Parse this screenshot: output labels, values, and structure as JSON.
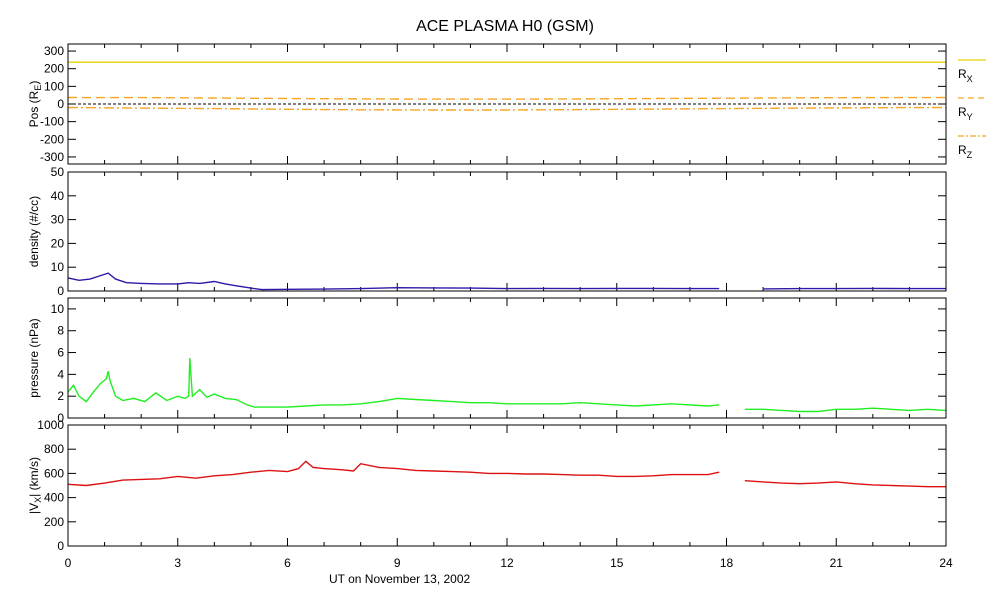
{
  "chart_data": {
    "title": "ACE PLASMA H0 (GSM)",
    "xlabel": "UT on November 13, 2002",
    "x_ticks": [
      "0",
      "3",
      "6",
      "9",
      "12",
      "15",
      "18",
      "21",
      "24"
    ],
    "xlim": [
      0,
      24
    ],
    "panels": [
      {
        "type": "line",
        "ylabel": "Pos (R",
        "ylabel_sub": "E",
        "ylabel_suffix": ")",
        "ylim": [
          -340,
          340
        ],
        "y_ticks": [
          "300",
          "200",
          "100",
          "0",
          "-100",
          "-200",
          "-300"
        ],
        "zero_line": true,
        "series": [
          {
            "name": "R",
            "name_sub": "X",
            "color": "#e6d200",
            "style": "solid",
            "x": [
              0,
              24
            ],
            "values": [
              237,
              237
            ]
          },
          {
            "name": "R",
            "name_sub": "Y",
            "color": "#f5a623",
            "style": "dashed",
            "x": [
              0,
              2,
              4,
              6,
              8,
              10,
              12,
              14,
              16,
              18,
              20,
              22,
              24
            ],
            "values": [
              37,
              36,
              34,
              31,
              29,
              28,
              28,
              29,
              31,
              33,
              35,
              36,
              37
            ]
          },
          {
            "name": "R",
            "name_sub": "Z",
            "color": "#f5a623",
            "style": "dashdot",
            "x": [
              0,
              2,
              4,
              6,
              8,
              10,
              12,
              14,
              16,
              18,
              20,
              22,
              24
            ],
            "values": [
              -20,
              -23,
              -26,
              -30,
              -33,
              -34,
              -34,
              -32,
              -29,
              -26,
              -23,
              -21,
              -20
            ]
          }
        ]
      },
      {
        "type": "line",
        "ylabel": "density (#/cc)",
        "ylim": [
          0,
          50
        ],
        "y_ticks": [
          "50",
          "40",
          "30",
          "20",
          "10",
          "0"
        ],
        "series": [
          {
            "name": "",
            "color": "#2c1aa8",
            "x": [
              0,
              0.3,
              0.6,
              0.9,
              1.1,
              1.3,
              1.6,
              2.0,
              2.5,
              3.0,
              3.3,
              3.6,
              4.0,
              4.3,
              4.6,
              5.0,
              5.3,
              6,
              7,
              8,
              9,
              10,
              11,
              12,
              13,
              14,
              15,
              16,
              17,
              17.8,
              18,
              19,
              20,
              21,
              22,
              23,
              24
            ],
            "values": [
              5.5,
              4.5,
              5,
              6.5,
              7.5,
              5,
              3.5,
              3.2,
              3,
              3,
              3.5,
              3.2,
              4,
              3,
              2.2,
              1.2,
              0.6,
              0.7,
              0.8,
              1,
              1.4,
              1.3,
              1.2,
              1,
              1.1,
              1,
              1.1,
              1.1,
              1,
              1,
              null,
              0.9,
              1,
              1,
              1.1,
              1,
              1
            ]
          }
        ]
      },
      {
        "type": "line",
        "ylabel": "pressure (nPa)",
        "ylim": [
          0,
          11
        ],
        "y_ticks": [
          "10",
          "8",
          "6",
          "4",
          "2",
          "0"
        ],
        "series": [
          {
            "name": "",
            "color": "#22ee22",
            "x": [
              0,
              0.15,
              0.3,
              0.5,
              0.7,
              0.9,
              1.05,
              1.1,
              1.15,
              1.3,
              1.5,
              1.8,
              2.1,
              2.4,
              2.7,
              3.0,
              3.2,
              3.3,
              3.33,
              3.4,
              3.6,
              3.8,
              4.0,
              4.3,
              4.6,
              4.9,
              5.1,
              5.5,
              6,
              6.5,
              7,
              7.5,
              8,
              8.5,
              9,
              9.5,
              10,
              10.5,
              11,
              11.5,
              12,
              12.5,
              13,
              13.5,
              14,
              14.5,
              15,
              15.5,
              16,
              16.5,
              17,
              17.5,
              17.8,
              18,
              18.5,
              19,
              19.5,
              20,
              20.5,
              21,
              21.5,
              22,
              22.5,
              23,
              23.5,
              24
            ],
            "values": [
              2.4,
              3.0,
              2.0,
              1.5,
              2.4,
              3.2,
              3.6,
              4.3,
              3.4,
              2.0,
              1.6,
              1.8,
              1.5,
              2.3,
              1.6,
              2.0,
              1.8,
              2.0,
              5.5,
              2.0,
              2.6,
              1.9,
              2.2,
              1.8,
              1.7,
              1.2,
              1.0,
              1.0,
              1.0,
              1.1,
              1.2,
              1.2,
              1.3,
              1.5,
              1.8,
              1.7,
              1.6,
              1.5,
              1.4,
              1.4,
              1.3,
              1.3,
              1.3,
              1.3,
              1.4,
              1.3,
              1.2,
              1.1,
              1.2,
              1.3,
              1.2,
              1.1,
              1.2,
              null,
              0.8,
              0.8,
              0.7,
              0.6,
              0.6,
              0.8,
              0.8,
              0.9,
              0.8,
              0.7,
              0.8,
              0.7
            ]
          }
        ]
      },
      {
        "type": "line",
        "ylabel": "|V",
        "ylabel_sub": "X",
        "ylabel_suffix": "| (km/s)",
        "ylim": [
          0,
          1000
        ],
        "y_ticks": [
          "1000",
          "800",
          "600",
          "400",
          "200",
          "0"
        ],
        "series": [
          {
            "name": "",
            "color": "#dd1111",
            "x": [
              0,
              0.5,
              1,
              1.5,
              2,
              2.5,
              3,
              3.5,
              4,
              4.5,
              5,
              5.5,
              6,
              6.3,
              6.5,
              6.7,
              7,
              7.5,
              7.8,
              8,
              8.5,
              9,
              9.5,
              10,
              10.5,
              11,
              11.5,
              12,
              12.5,
              13,
              13.5,
              14,
              14.5,
              15,
              15.5,
              16,
              16.5,
              17,
              17.5,
              17.8,
              18,
              18.5,
              19,
              19.5,
              20,
              20.5,
              21,
              21.5,
              22,
              22.5,
              23,
              23.5,
              24
            ],
            "values": [
              510,
              500,
              520,
              545,
              550,
              555,
              575,
              560,
              580,
              590,
              610,
              625,
              615,
              640,
              700,
              650,
              640,
              630,
              620,
              680,
              650,
              640,
              625,
              620,
              615,
              610,
              600,
              600,
              595,
              595,
              590,
              585,
              585,
              575,
              575,
              580,
              590,
              590,
              590,
              610,
              null,
              540,
              530,
              520,
              515,
              520,
              530,
              515,
              505,
              500,
              495,
              490,
              490
            ]
          }
        ]
      }
    ]
  }
}
